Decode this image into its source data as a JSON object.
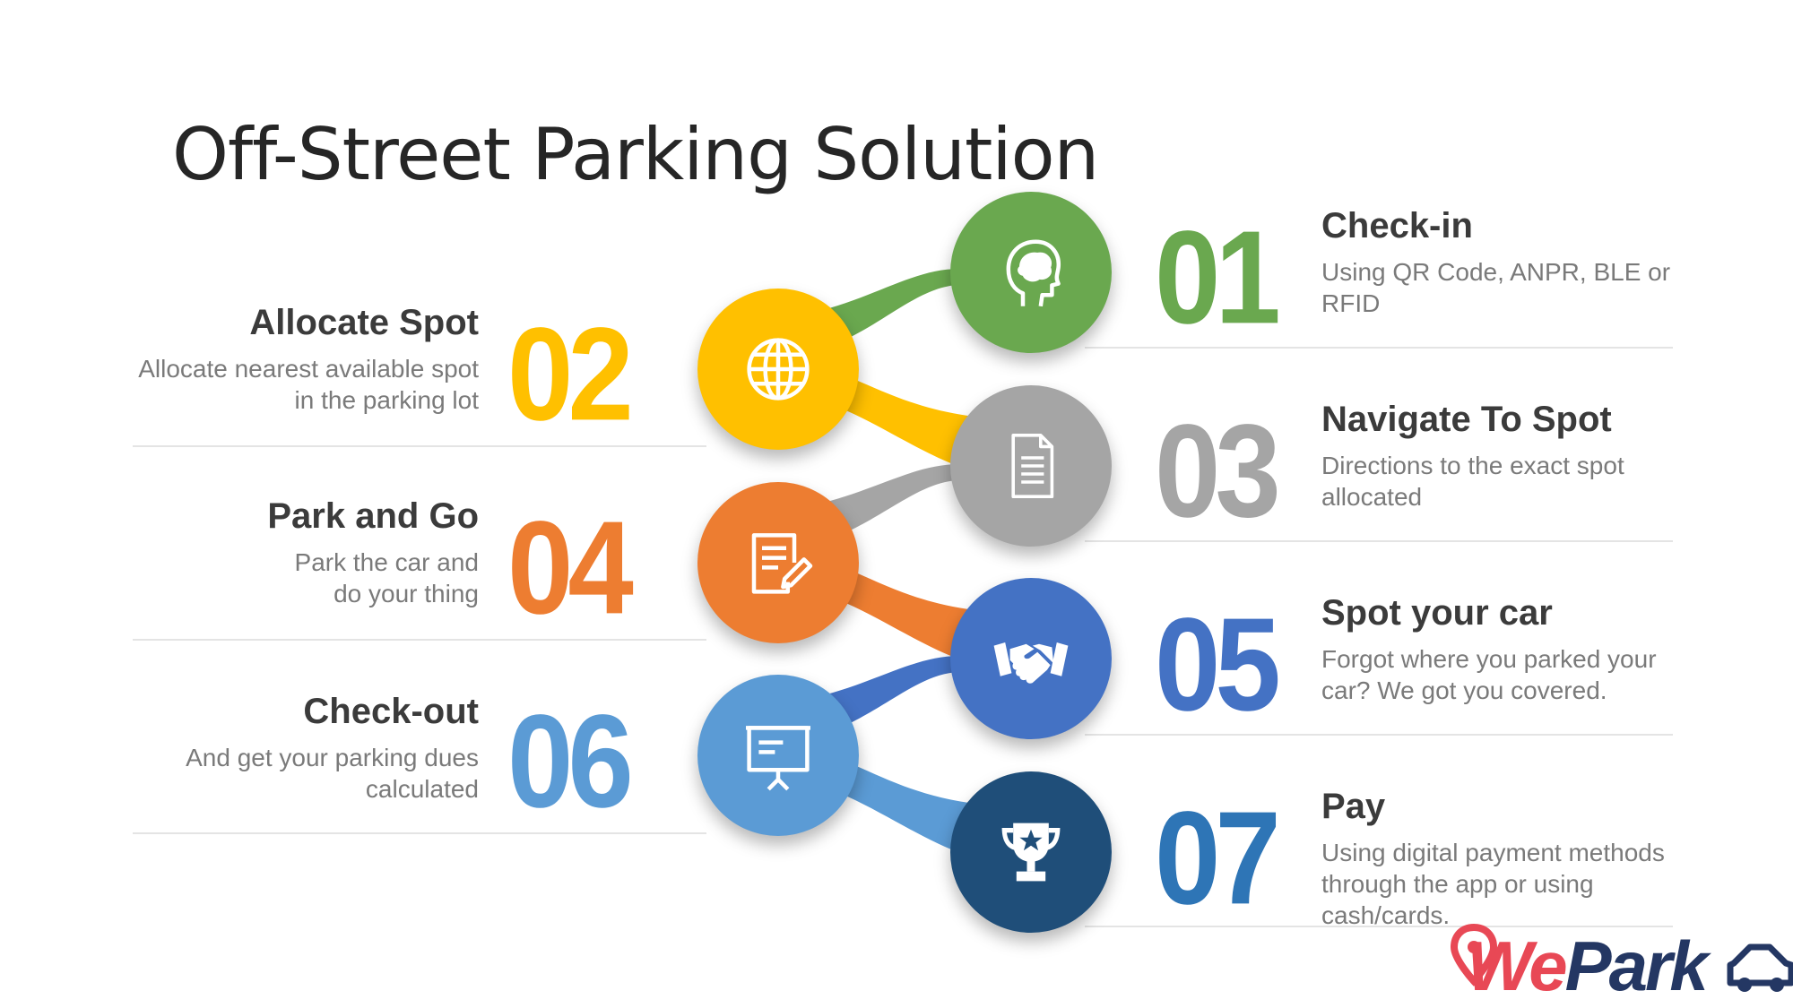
{
  "title": "Off-Street Parking Solution",
  "colors": {
    "green": "#6aa84f",
    "yellow": "#ffc000",
    "gray": "#a5a5a5",
    "orange": "#ed7d31",
    "blue": "#4472c4",
    "light_blue": "#5b9bd5",
    "navy": "#1f4e79",
    "brand_red": "#e84855",
    "brand_navy": "#243763"
  },
  "steps": [
    {
      "number": "01",
      "title": "Check-in",
      "description": "Using QR Code, ANPR, BLE or RFID",
      "icon": "head-brain-icon",
      "color": "#6aa84f"
    },
    {
      "number": "02",
      "title": "Allocate Spot",
      "description": "Allocate nearest available spot in the parking lot",
      "icon": "globe-icon",
      "color": "#ffc000"
    },
    {
      "number": "03",
      "title": "Navigate To Spot",
      "description": "Directions to the exact spot allocated",
      "icon": "document-icon",
      "color": "#a5a5a5"
    },
    {
      "number": "04",
      "title": "Park and Go",
      "description": "Park the car and do your thing",
      "icon": "edit-document-icon",
      "color": "#ed7d31"
    },
    {
      "number": "05",
      "title": "Spot your car",
      "description": "Forgot where you parked your car? We got you covered.",
      "icon": "handshake-icon",
      "color": "#4472c4"
    },
    {
      "number": "06",
      "title": "Check-out",
      "description": "And get your parking dues calculated",
      "icon": "presentation-board-icon",
      "color": "#5b9bd5"
    },
    {
      "number": "07",
      "title": "Pay",
      "description": "Using digital payment methods through the app or using cash/cards.",
      "icon": "trophy-icon",
      "color": "#1f4e79"
    }
  ],
  "logo": {
    "text": "WePark",
    "prefix": "We",
    "suffix": "Park",
    "icons": [
      "map-pin-icon",
      "car-icon"
    ]
  }
}
